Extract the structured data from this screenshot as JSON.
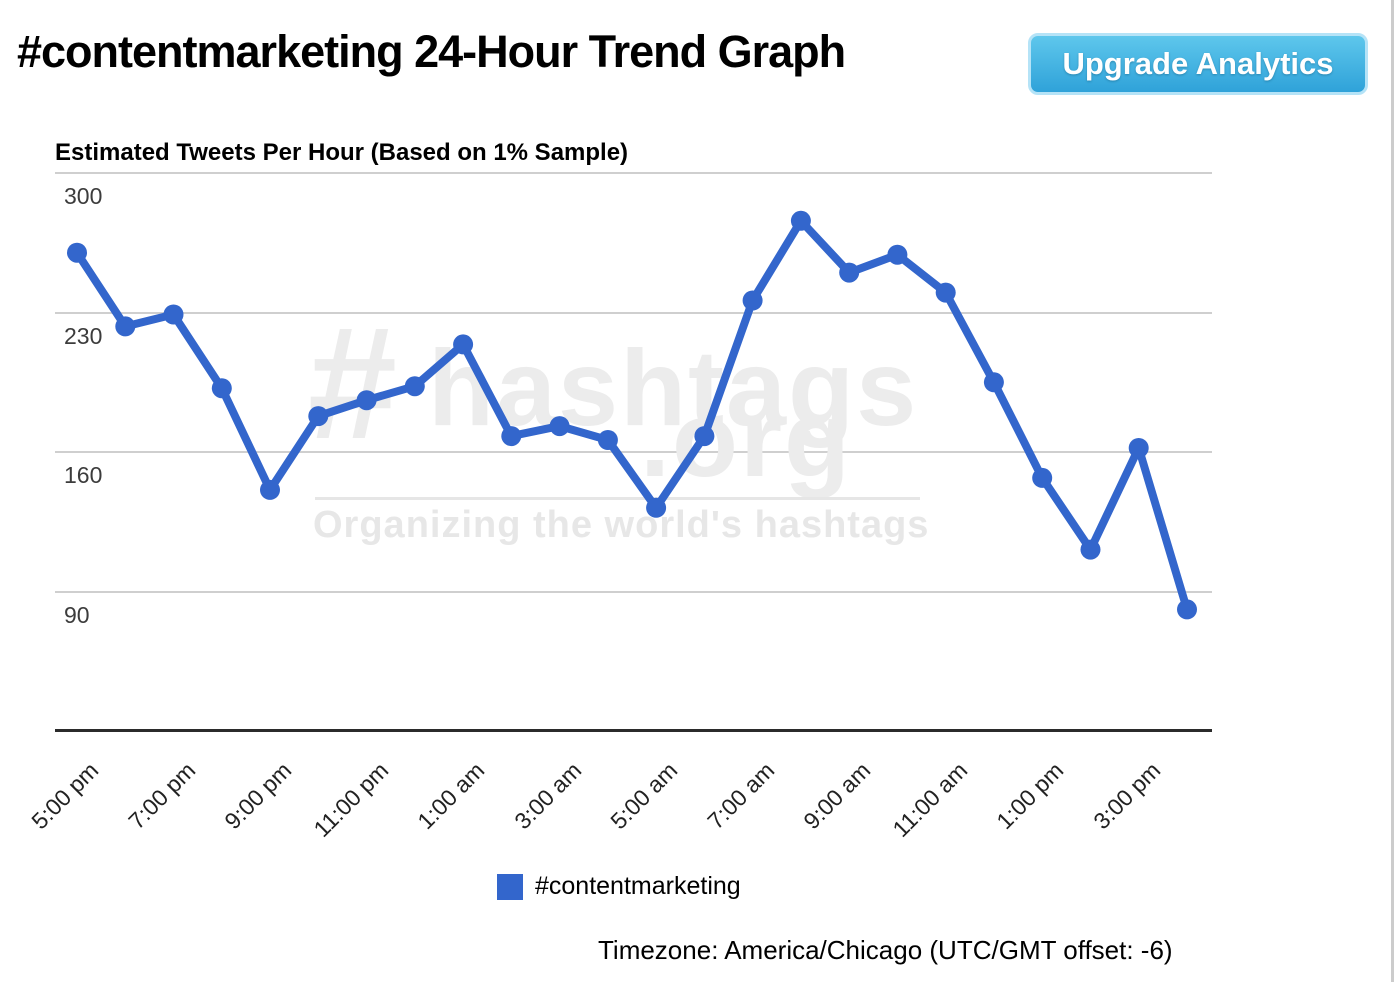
{
  "header": {
    "title": "#contentmarketing 24-Hour Trend Graph",
    "upgrade_button_label": "Upgrade Analytics"
  },
  "legend": {
    "label": "#contentmarketing"
  },
  "footer": {
    "timezone_note": "Timezone: America/Chicago (UTC/GMT offset: -6)"
  },
  "watermark": {
    "hash": "#",
    "name": "hashtags",
    "tld": ".org",
    "tagline": "Organizing the world's hashtags"
  },
  "colors": {
    "series_blue": "#3366cc",
    "grid_gray": "#cfcfcf",
    "axis_dark": "#2b2b2b",
    "button_gradient_top": "#5ec7ec",
    "button_gradient_bottom": "#2fa2d9",
    "button_border": "#b5e3f7",
    "watermark_gray": "#ececec"
  },
  "chart_data": {
    "type": "line",
    "title": "Estimated Tweets Per Hour (Based on 1% Sample)",
    "x": [
      "5:00 pm",
      "6:00 pm",
      "7:00 pm",
      "8:00 pm",
      "9:00 pm",
      "10:00 pm",
      "11:00 pm",
      "12:00 am",
      "1:00 am",
      "2:00 am",
      "3:00 am",
      "4:00 am",
      "5:00 am",
      "6:00 am",
      "7:00 am",
      "8:00 am",
      "9:00 am",
      "10:00 am",
      "11:00 am",
      "12:00 pm",
      "1:00 pm",
      "2:00 pm",
      "3:00 pm",
      "4:00 pm"
    ],
    "x_tick_labels": [
      "5:00 pm",
      "7:00 pm",
      "9:00 pm",
      "11:00 pm",
      "1:00 am",
      "3:00 am",
      "5:00 am",
      "7:00 am",
      "9:00 am",
      "11:00 am",
      "1:00 pm",
      "3:00 pm"
    ],
    "series": [
      {
        "name": "#contentmarketing",
        "color": "#3366cc",
        "values": [
          260,
          223,
          229,
          192,
          141,
          178,
          186,
          193,
          214,
          168,
          173,
          166,
          132,
          168,
          236,
          276,
          250,
          259,
          240,
          195,
          147,
          111,
          162,
          81
        ]
      }
    ],
    "y_ticks": [
      300,
      230,
      160,
      90
    ],
    "ylim": [
      20,
      300
    ],
    "xlabel": "",
    "ylabel": "Estimated Tweets Per Hour",
    "grid": true,
    "legend_position": "bottom"
  }
}
